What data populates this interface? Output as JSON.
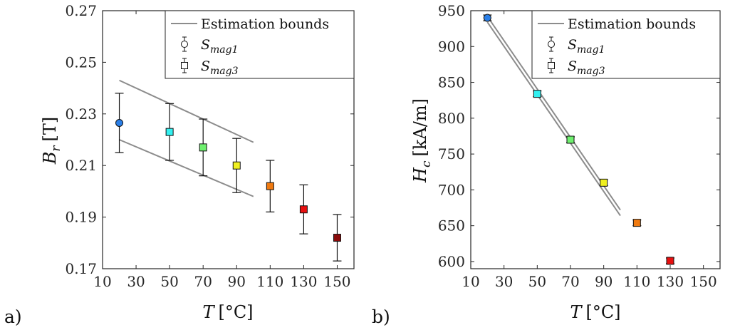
{
  "chart_data": [
    {
      "type": "scatter",
      "panel_label": "a)",
      "xlabel": "T [°C]",
      "ylabel": "B_r [T]",
      "ylabel_main": "B",
      "ylabel_sub": "r",
      "ylabel_unit": "[T]",
      "xlim": [
        10,
        160
      ],
      "ylim": [
        0.17,
        0.27
      ],
      "xticks": [
        "10",
        "30",
        "50",
        "70",
        "90",
        "110",
        "130",
        "150"
      ],
      "yticks": [
        "0.17",
        "0.19",
        "0.21",
        "0.23",
        "0.25",
        "0.27"
      ],
      "legend": {
        "placement": "top-right",
        "entries": [
          {
            "label": "Estimation bounds",
            "kind": "line"
          },
          {
            "label_main": "S",
            "label_sub": "mag1",
            "kind": "circle"
          },
          {
            "label_main": "S",
            "label_sub": "mag3",
            "kind": "square"
          }
        ]
      },
      "bounds": [
        {
          "x": [
            20,
            100
          ],
          "y": [
            0.243,
            0.219
          ]
        },
        {
          "x": [
            20,
            100
          ],
          "y": [
            0.22,
            0.198
          ]
        }
      ],
      "points": [
        {
          "x": 20,
          "y": 0.2265,
          "err_low": 0.0115,
          "err_high": 0.0115,
          "marker": "circle",
          "color": "#2a7fe8"
        },
        {
          "x": 50,
          "y": 0.223,
          "err_low": 0.011,
          "err_high": 0.011,
          "marker": "square",
          "color": "#33f0f0"
        },
        {
          "x": 70,
          "y": 0.217,
          "err_low": 0.011,
          "err_high": 0.011,
          "marker": "square",
          "color": "#6ff06f"
        },
        {
          "x": 90,
          "y": 0.21,
          "err_low": 0.0105,
          "err_high": 0.0105,
          "marker": "square",
          "color": "#f0f020"
        },
        {
          "x": 110,
          "y": 0.202,
          "err_low": 0.01,
          "err_high": 0.01,
          "marker": "square",
          "color": "#f07a10"
        },
        {
          "x": 130,
          "y": 0.193,
          "err_low": 0.0095,
          "err_high": 0.0095,
          "marker": "square",
          "color": "#e81010"
        },
        {
          "x": 150,
          "y": 0.182,
          "err_low": 0.009,
          "err_high": 0.009,
          "marker": "square",
          "color": "#8a0a0a"
        }
      ]
    },
    {
      "type": "scatter",
      "panel_label": "b)",
      "xlabel": "T [°C]",
      "ylabel": "H_c [kA/m]",
      "ylabel_main": "H",
      "ylabel_sub": "c",
      "ylabel_unit": "[kA/m]",
      "xlim": [
        10,
        160
      ],
      "ylim": [
        590,
        950
      ],
      "xticks": [
        "10",
        "30",
        "50",
        "70",
        "90",
        "110",
        "130",
        "150"
      ],
      "yticks": [
        "600",
        "650",
        "700",
        "750",
        "800",
        "850",
        "900",
        "950"
      ],
      "legend": {
        "placement": "top-right",
        "entries": [
          {
            "label": "Estimation bounds",
            "kind": "line"
          },
          {
            "label_main": "S",
            "label_sub": "mag1",
            "kind": "circle"
          },
          {
            "label_main": "S",
            "label_sub": "mag3",
            "kind": "square"
          }
        ]
      },
      "bounds": [
        {
          "x": [
            20,
            100
          ],
          "y": [
            942,
            672
          ]
        },
        {
          "x": [
            20,
            100
          ],
          "y": [
            934,
            664
          ]
        }
      ],
      "points": [
        {
          "x": 20,
          "y": 940,
          "err_low": 4,
          "err_high": 4,
          "marker": "circle",
          "color": "#2a7fe8"
        },
        {
          "x": 50,
          "y": 834,
          "err_low": 4,
          "err_high": 4,
          "marker": "square",
          "color": "#33f0f0"
        },
        {
          "x": 70,
          "y": 770,
          "err_low": 4,
          "err_high": 4,
          "marker": "square",
          "color": "#6ff06f"
        },
        {
          "x": 90,
          "y": 710,
          "err_low": 4,
          "err_high": 4,
          "marker": "square",
          "color": "#f0f020"
        },
        {
          "x": 110,
          "y": 654,
          "err_low": 4,
          "err_high": 4,
          "marker": "square",
          "color": "#f07a10"
        },
        {
          "x": 130,
          "y": 601,
          "err_low": 4,
          "err_high": 4,
          "marker": "square",
          "color": "#e81010"
        }
      ]
    }
  ]
}
